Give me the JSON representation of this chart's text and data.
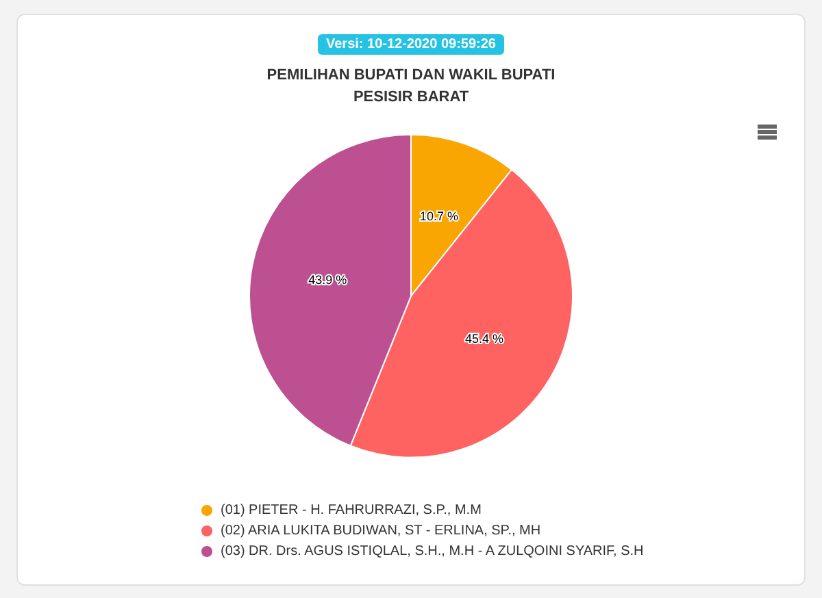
{
  "chart_data": {
    "type": "pie",
    "title": "PEMILIHAN BUPATI DAN WAKIL BUPATI\nPESISIR BARAT",
    "annotations": [
      "Versi: 10-12-2020 09:59:26"
    ],
    "categories": [
      "(01) PIETER - H. FAHRURRAZI, S.P., M.M",
      "(02) ARIA LUKITA BUDIWAN, ST - ERLINA, SP., MH",
      "(03) DR. Drs. AGUS ISTIQLAL, S.H., M.H - A ZULQOINI SYARIF, S.H"
    ],
    "values": [
      10.7,
      45.4,
      43.9
    ],
    "colors": [
      "#f9a602",
      "#ff6361",
      "#bc5090"
    ],
    "value_labels": [
      "10.7 %",
      "45.4 %",
      "43.9 %"
    ],
    "legend": "bottom left"
  }
}
